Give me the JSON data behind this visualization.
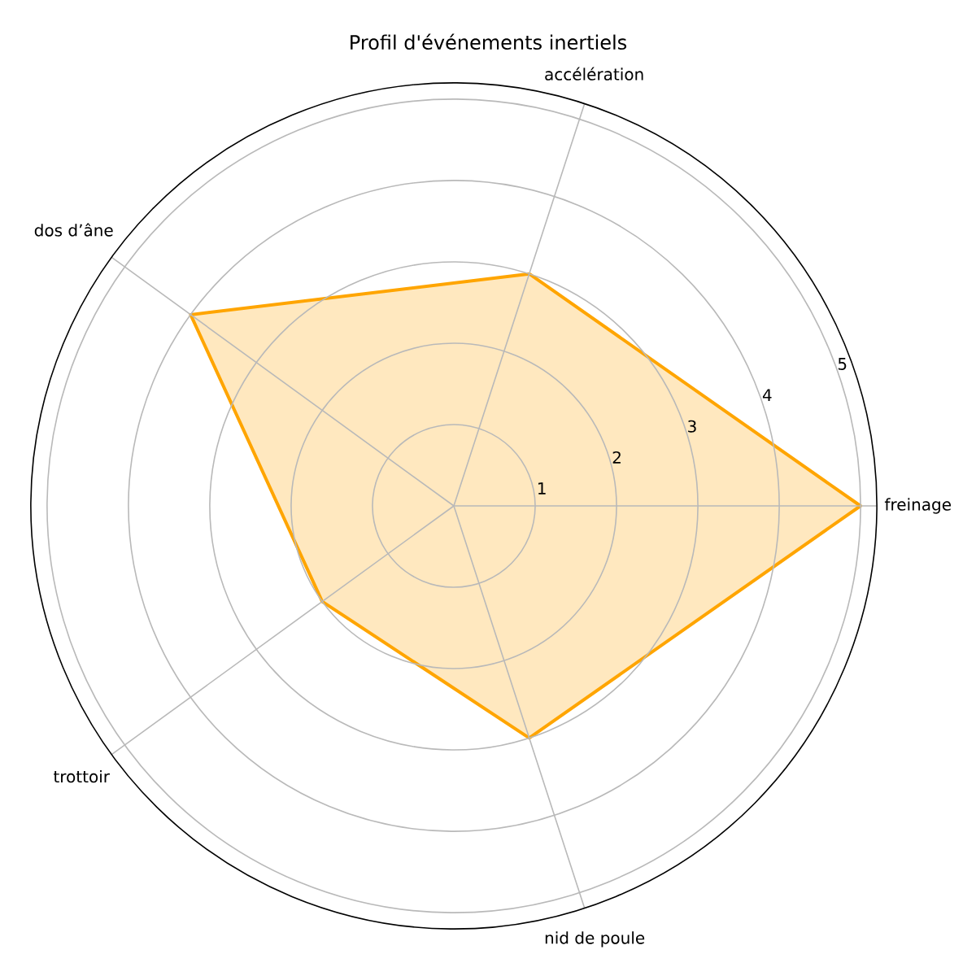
{
  "chart_data": {
    "type": "radar",
    "title": "Profil d'événements inertiels",
    "categories": [
      "accélération",
      "freinage",
      "nid de poule",
      "trottoir",
      "dos d’âne"
    ],
    "series": [
      {
        "color": "#ffa500",
        "values": [
          3,
          5,
          3,
          2,
          4
        ]
      }
    ],
    "ylim": [
      0,
      5.2
    ],
    "yticks": [
      1,
      2,
      3,
      4,
      5
    ],
    "grid": true
  }
}
